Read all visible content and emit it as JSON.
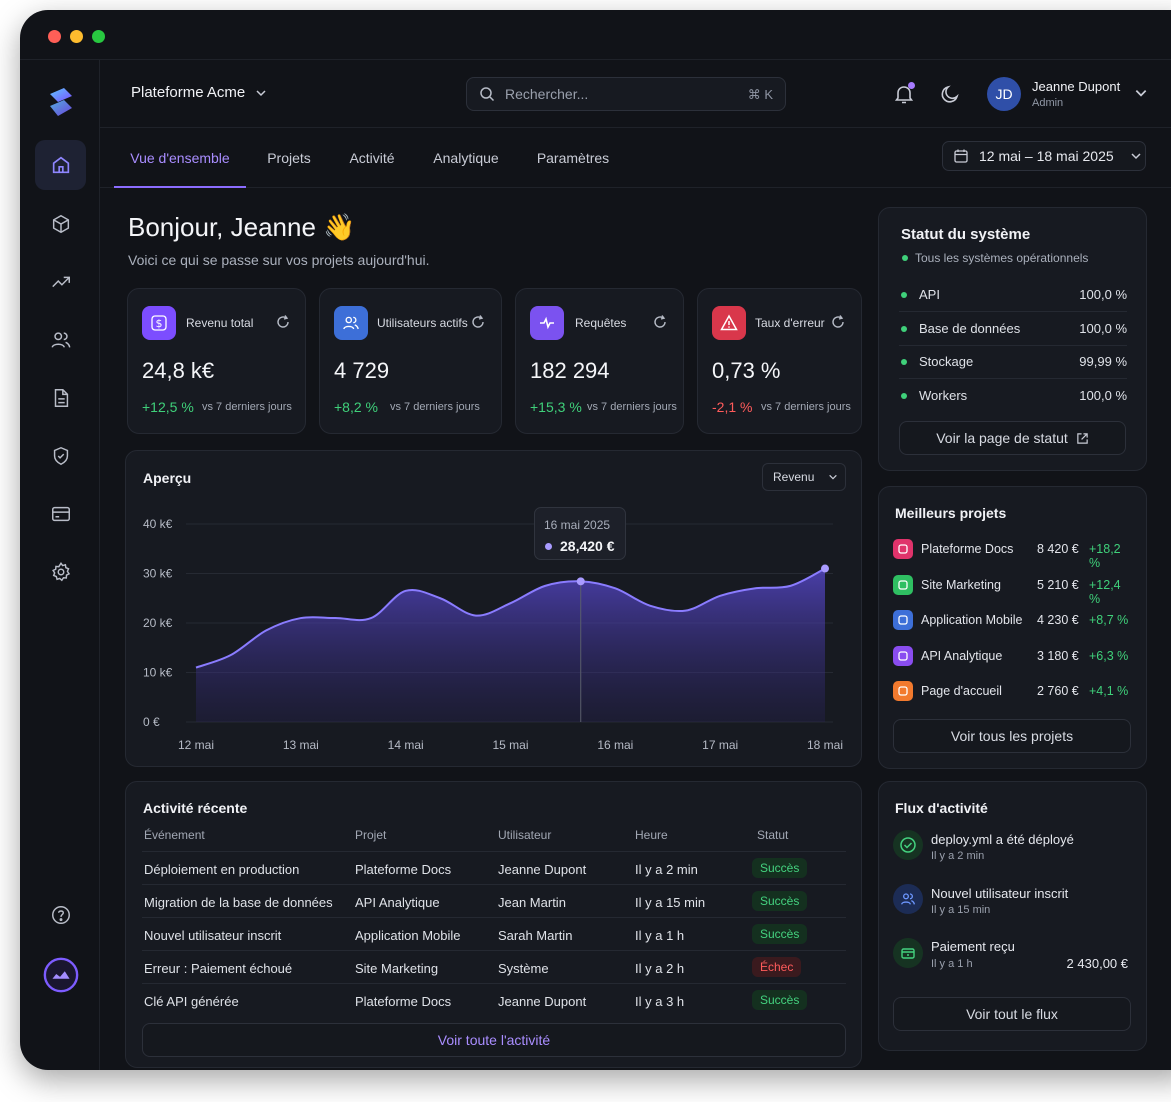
{
  "header": {
    "workspace": "Plateforme Acme",
    "search_placeholder": "Rechercher...",
    "search_shortcut": "⌘ K",
    "user": {
      "initials": "JD",
      "name": "Jeanne Dupont",
      "role": "Admin"
    }
  },
  "tabs": [
    "Vue d'ensemble",
    "Projets",
    "Activité",
    "Analytique",
    "Paramètres"
  ],
  "date_range": "12 mai – 18 mai 2025",
  "greeting": {
    "title": "Bonjour, Jeanne 👋",
    "subtitle": "Voici ce qui se passe sur vos projets aujourd'hui."
  },
  "kpis": [
    {
      "label": "Revenu total",
      "value": "24,8 k€",
      "delta": "+12,5 %",
      "vs": "vs 7 derniers jours",
      "color": "#7c4dff"
    },
    {
      "label": "Utilisateurs actifs",
      "value": "4 729",
      "delta": "+8,2 %",
      "vs": "vs 7 derniers jours",
      "color": "#3d6fd8"
    },
    {
      "label": "Requêtes",
      "value": "182 294",
      "delta": "+15,3 %",
      "vs": "vs 7 derniers jours",
      "color": "#7b52f0"
    },
    {
      "label": "Taux d'erreur",
      "value": "0,73 %",
      "delta": "-2,1 %",
      "vs": "vs 7 derniers jours",
      "color": "#d9374b"
    }
  ],
  "overview": {
    "title": "Aperçu",
    "select": "Revenu",
    "tooltip": {
      "date": "16 mai 2025",
      "value": "28,420 €"
    }
  },
  "chart_data": {
    "type": "area",
    "categories": [
      "12 mai",
      "13 mai",
      "14 mai",
      "15 mai",
      "16 mai",
      "17 mai",
      "18 mai"
    ],
    "x": [
      0,
      0.33,
      0.67,
      1,
      1.33,
      1.67,
      2,
      2.33,
      2.67,
      3,
      3.33,
      3.67,
      4,
      4.33,
      4.67,
      5,
      5.33,
      5.67,
      6
    ],
    "values": [
      11000,
      13500,
      18500,
      21000,
      21000,
      21000,
      26500,
      25000,
      21500,
      24000,
      27500,
      28420,
      27000,
      23500,
      22500,
      25500,
      27000,
      27500,
      31000
    ],
    "ylim": [
      0,
      40000
    ],
    "yticks": [
      "0 €",
      "10 k€",
      "20 k€",
      "30 k€",
      "40 k€"
    ],
    "grid": true,
    "highlight_index": 11
  },
  "recent_activity": {
    "title": "Activité récente",
    "columns": [
      "Événement",
      "Projet",
      "Utilisateur",
      "Heure",
      "Statut"
    ],
    "rows": [
      {
        "event": "Déploiement en production",
        "project": "Plateforme Docs",
        "user": "Jeanne Dupont",
        "time": "Il y a 2 min",
        "status": "Succès",
        "ok": true
      },
      {
        "event": "Migration de la base de données",
        "project": "API Analytique",
        "user": "Jean Martin",
        "time": "Il y a 15 min",
        "status": "Succès",
        "ok": true
      },
      {
        "event": "Nouvel utilisateur inscrit",
        "project": "Application Mobile",
        "user": "Sarah Martin",
        "time": "Il y a 1 h",
        "status": "Succès",
        "ok": true
      },
      {
        "event": "Erreur : Paiement échoué",
        "project": "Site Marketing",
        "user": "Système",
        "time": "Il y a 2 h",
        "status": "Échec",
        "ok": false
      },
      {
        "event": "Clé API générée",
        "project": "Plateforme Docs",
        "user": "Jeanne Dupont",
        "time": "Il y a 3 h",
        "status": "Succès",
        "ok": true
      }
    ],
    "footer": "Voir toute l'activité"
  },
  "system_status": {
    "title": "Statut du système",
    "summary": "Tous les systèmes opérationnels",
    "items": [
      {
        "name": "API",
        "value": "100,0 %"
      },
      {
        "name": "Base de données",
        "value": "100,0 %"
      },
      {
        "name": "Stockage",
        "value": "99,99 %"
      },
      {
        "name": "Workers",
        "value": "100,0 %"
      }
    ],
    "button": "Voir la page de statut"
  },
  "top_projects": {
    "title": "Meilleurs projets",
    "items": [
      {
        "name": "Plateforme Docs",
        "value": "8 420 €",
        "delta": "+18,2 %",
        "color": "#e0336b"
      },
      {
        "name": "Site Marketing",
        "value": "5 210 €",
        "delta": "+12,4 %",
        "color": "#2fbf62"
      },
      {
        "name": "Application Mobile",
        "value": "4 230 €",
        "delta": "+8,7 %",
        "color": "#3d6fd8"
      },
      {
        "name": "API Analytique",
        "value": "3 180 €",
        "delta": "+6,3 %",
        "color": "#8a4df0"
      },
      {
        "name": "Page d'accueil",
        "value": "2 760 €",
        "delta": "+4,1 %",
        "color": "#f27a2e"
      }
    ],
    "button": "Voir tous les projets"
  },
  "feed": {
    "title": "Flux d'activité",
    "items": [
      {
        "text": "deploy.yml a été déployé",
        "time": "Il y a 2 min",
        "amount": ""
      },
      {
        "text": "Nouvel utilisateur inscrit",
        "time": "Il y a 15 min",
        "amount": ""
      },
      {
        "text": "Paiement reçu",
        "time": "Il y a 1 h",
        "amount": "2 430,00 €"
      }
    ],
    "button": "Voir tout le flux"
  }
}
